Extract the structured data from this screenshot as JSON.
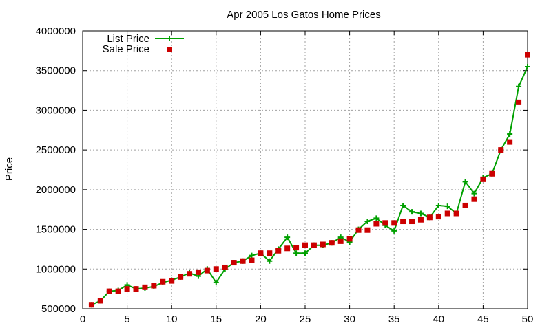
{
  "chart_data": {
    "type": "line",
    "title": "Apr 2005 Los Gatos Home Prices",
    "xlabel": "",
    "ylabel": "Price",
    "xlim": [
      0,
      50
    ],
    "ylim": [
      500000,
      4000000
    ],
    "x_ticks": [
      0,
      5,
      10,
      15,
      20,
      25,
      30,
      35,
      40,
      45,
      50
    ],
    "y_ticks": [
      500000,
      1000000,
      1500000,
      2000000,
      2500000,
      3000000,
      3500000,
      4000000
    ],
    "grid": true,
    "legend_position": "top-left",
    "x": [
      1,
      2,
      3,
      4,
      5,
      6,
      7,
      8,
      9,
      10,
      11,
      12,
      13,
      14,
      15,
      16,
      17,
      18,
      19,
      20,
      21,
      22,
      23,
      24,
      25,
      26,
      27,
      28,
      29,
      30,
      31,
      32,
      33,
      34,
      35,
      36,
      37,
      38,
      39,
      40,
      41,
      42,
      43,
      44,
      45,
      46,
      47,
      48,
      49,
      50
    ],
    "series": [
      {
        "name": "List Price",
        "style": "line-plus",
        "color": "#00a000",
        "values": [
          550000,
          600000,
          720000,
          730000,
          800000,
          750000,
          760000,
          780000,
          830000,
          860000,
          900000,
          950000,
          910000,
          1000000,
          830000,
          1000000,
          1080000,
          1100000,
          1170000,
          1200000,
          1100000,
          1250000,
          1400000,
          1200000,
          1200000,
          1300000,
          1300000,
          1330000,
          1400000,
          1340000,
          1500000,
          1600000,
          1640000,
          1550000,
          1480000,
          1800000,
          1720000,
          1700000,
          1650000,
          1800000,
          1790000,
          1700000,
          2100000,
          1950000,
          2150000,
          2200000,
          2500000,
          2700000,
          3300000,
          3550000
        ]
      },
      {
        "name": "Sale Price",
        "style": "square",
        "color": "#cc0000",
        "values": [
          550000,
          600000,
          720000,
          720000,
          750000,
          750000,
          770000,
          790000,
          840000,
          850000,
          900000,
          940000,
          960000,
          980000,
          1000000,
          1020000,
          1080000,
          1100000,
          1110000,
          1200000,
          1200000,
          1230000,
          1260000,
          1270000,
          1300000,
          1300000,
          1310000,
          1330000,
          1350000,
          1380000,
          1490000,
          1490000,
          1570000,
          1580000,
          1580000,
          1600000,
          1600000,
          1620000,
          1650000,
          1660000,
          1700000,
          1700000,
          1800000,
          1880000,
          2130000,
          2200000,
          2500000,
          2600000,
          3100000,
          3700000
        ]
      }
    ]
  }
}
